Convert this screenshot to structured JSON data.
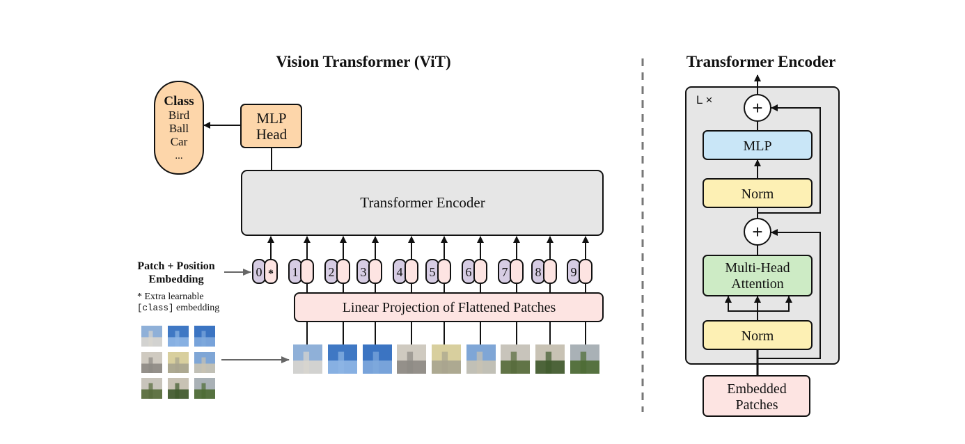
{
  "vit": {
    "title": "Vision Transformer (ViT)",
    "class_box": {
      "heading": "Class",
      "items": [
        "Bird",
        "Ball",
        "Car",
        "..."
      ]
    },
    "mlp_head": [
      "MLP",
      "Head"
    ],
    "encoder_label": "Transformer Encoder",
    "embedding_label": [
      "Patch + Position",
      "Embedding"
    ],
    "extra_note": {
      "line1": "* Extra learnable",
      "code": "[class]",
      "line2": " embedding"
    },
    "tokens": [
      "0",
      "1",
      "2",
      "3",
      "4",
      "5",
      "6",
      "7",
      "8",
      "9"
    ],
    "class_token_mark": "*",
    "projection_label": "Linear Projection of Flattened Patches"
  },
  "encoder": {
    "title": "Transformer Encoder",
    "repeat_label": "L ×",
    "plus": "+",
    "mlp": "MLP",
    "norm": "Norm",
    "attention": [
      "Multi-Head",
      "Attention"
    ],
    "input": [
      "Embedded",
      "Patches"
    ]
  },
  "colors": {
    "class_fill": "#fdd6aa",
    "mlp_head_fill": "#fdd6aa",
    "encoder_fill": "#e6e6e6",
    "position_fill": "#d6cce3",
    "patch_fill": "#fde4e2",
    "projection_fill": "#fde4e2",
    "mlp_fill": "#c9e6f7",
    "norm_fill": "#fdf0b4",
    "attention_fill": "#cdebc5"
  }
}
